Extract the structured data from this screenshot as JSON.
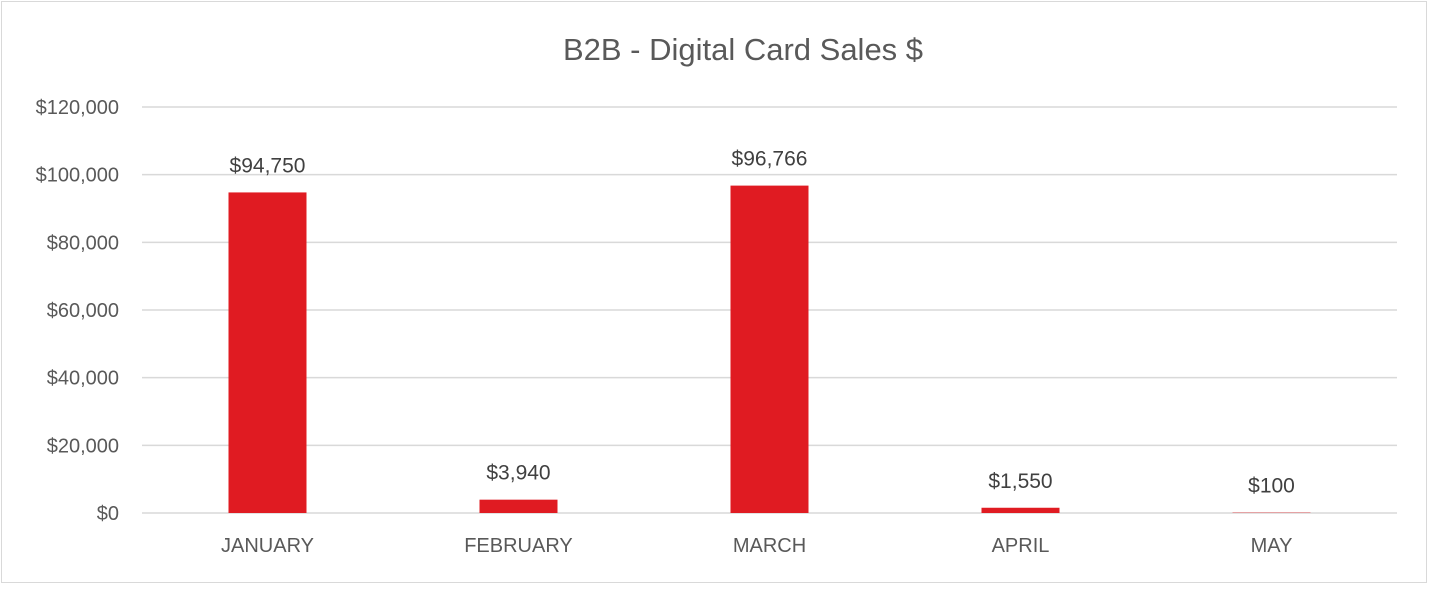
{
  "chart_data": {
    "type": "bar",
    "title": "B2B - Digital Card Sales $",
    "categories": [
      "JANUARY",
      "FEBRUARY",
      "MARCH",
      "APRIL",
      "MAY"
    ],
    "values": [
      94750,
      3940,
      96766,
      1550,
      100
    ],
    "data_labels": [
      "$94,750",
      "$3,940",
      "$96,766",
      "$1,550",
      "$100"
    ],
    "ylim": [
      0,
      120000
    ],
    "y_ticks": [
      0,
      20000,
      40000,
      60000,
      80000,
      100000,
      120000
    ],
    "y_tick_labels": [
      "$0",
      "$20,000",
      "$40,000",
      "$60,000",
      "$80,000",
      "$100,000",
      "$120,000"
    ],
    "xlabel": "",
    "ylabel": "",
    "grid": true,
    "legend": "none",
    "bar_color": "#e01b22"
  }
}
